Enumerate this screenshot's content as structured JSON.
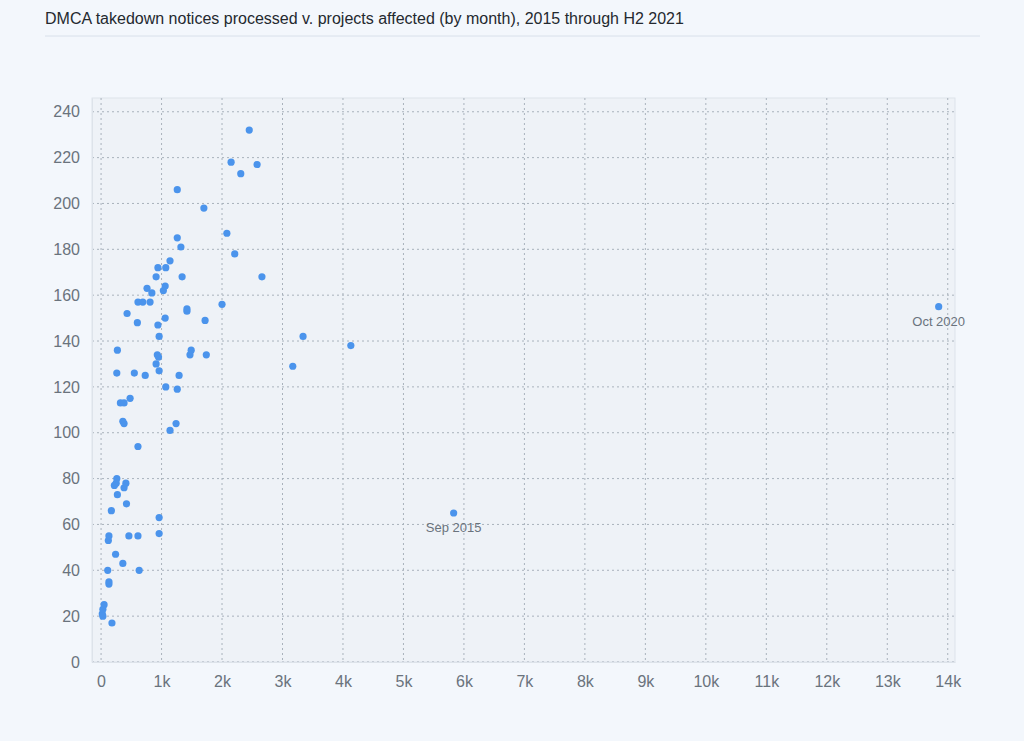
{
  "chart_data": {
    "type": "scatter",
    "title": "DMCA takedown notices processed v. projects affected (by month), 2015 through H2 2021",
    "x": [
      20,
      30,
      50,
      30,
      180,
      110,
      130,
      130,
      120,
      130,
      170,
      260,
      270,
      240,
      220,
      250,
      260,
      270,
      320,
      380,
      380,
      360,
      360,
      380,
      410,
      420,
      460,
      480,
      430,
      550,
      610,
      610,
      630,
      610,
      600,
      690,
      730,
      760,
      810,
      840,
      910,
      910,
      930,
      950,
      940,
      960,
      940,
      960,
      960,
      960,
      1030,
      1060,
      1070,
      1060,
      1070,
      1140,
      1140,
      1260,
      1260,
      1240,
      1260,
      1290,
      1320,
      1340,
      1420,
      1420,
      1470,
      1490,
      1700,
      1720,
      1740,
      2000,
      2080,
      2150,
      2210,
      2310,
      2450,
      2580,
      2660,
      3170,
      3340,
      4130,
      5830,
      13850
    ],
    "values": [
      21,
      23,
      25,
      20,
      17,
      40,
      34,
      35,
      53,
      55,
      66,
      126,
      136,
      47,
      77,
      78,
      80,
      73,
      113,
      113,
      104,
      105,
      43,
      76,
      78,
      69,
      55,
      115,
      152,
      126,
      94,
      55,
      40,
      157,
      148,
      157,
      125,
      163,
      157,
      161,
      168,
      130,
      134,
      133,
      172,
      127,
      147,
      56,
      63,
      142,
      162,
      164,
      172,
      150,
      120,
      101,
      175,
      206,
      185,
      104,
      119,
      125,
      181,
      168,
      153,
      154,
      134,
      136,
      198,
      149,
      134,
      156,
      187,
      218,
      178,
      213,
      232,
      217,
      168,
      129,
      142,
      138,
      65,
      155
    ],
    "color": "#4b94ec",
    "marker": "circle",
    "xlim": [
      -150,
      14120
    ],
    "ylim": [
      0,
      246
    ],
    "xticks": [
      0,
      {
        "value": 1000,
        "label": "1k"
      },
      {
        "value": 2000,
        "label": "2k"
      },
      {
        "value": 3000,
        "label": "3k"
      },
      {
        "value": 4000,
        "label": "4k"
      },
      {
        "value": 5000,
        "label": "5k"
      },
      {
        "value": 6000,
        "label": "6k"
      },
      {
        "value": 7000,
        "label": "7k"
      },
      {
        "value": 8000,
        "label": "8k"
      },
      {
        "value": 9000,
        "label": "9k"
      },
      {
        "value": 10000,
        "label": "10k"
      },
      {
        "value": 11000,
        "label": "11k"
      },
      {
        "value": 12000,
        "label": "12k"
      },
      {
        "value": 13000,
        "label": "13k"
      },
      {
        "value": 14000,
        "label": "14k"
      }
    ],
    "yticks": [
      0,
      20,
      40,
      60,
      80,
      100,
      120,
      140,
      160,
      180,
      200,
      220,
      240
    ],
    "grid": true,
    "annotations": [
      {
        "text": "Sep 2015",
        "x": 5830,
        "y": 65
      },
      {
        "text": "Oct 2020",
        "x": 13850,
        "y": 155
      }
    ]
  }
}
